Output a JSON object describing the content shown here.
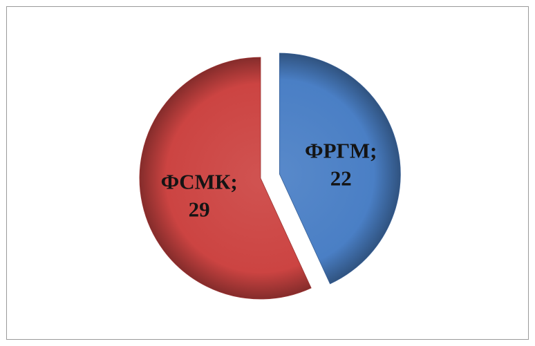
{
  "chart_data": {
    "type": "pie",
    "title": "",
    "slices": [
      {
        "label": "ФРГМ;",
        "value": 22,
        "value_label": "22",
        "color": "#4a7fc5",
        "exploded": true
      },
      {
        "label": "ФСМК;",
        "value": 29,
        "value_label": "29",
        "color": "#cc4442",
        "exploded": false
      }
    ],
    "legend": "none",
    "style": "3d-shaded"
  }
}
